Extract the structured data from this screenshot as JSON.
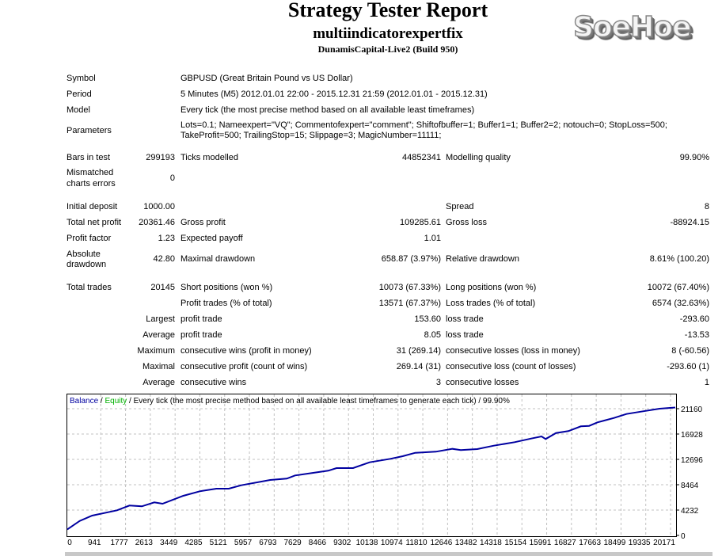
{
  "header": {
    "title": "Strategy Tester Report",
    "expert": "multiindicatorexpertfix",
    "server": "DunamisCapital-Live2 (Build 950)",
    "logo": "SoeHoe"
  },
  "info": {
    "symbol_label": "Symbol",
    "symbol": "GBPUSD (Great Britain Pound vs US Dollar)",
    "period_label": "Period",
    "period": "5 Minutes (M5) 2012.01.01 22:00 - 2015.12.31 21:59 (2012.01.01 - 2015.12.31)",
    "model_label": "Model",
    "model": "Every tick (the most precise method based on all available least timeframes)",
    "parameters_label": "Parameters",
    "parameters_line1": "Lots=0.1; Nameexpert=\"VQ\"; Commentofexpert=\"comment\"; Shiftofbuffer=1; Buffer1=1; Buffer2=2; notouch=0; StopLoss=500;",
    "parameters_line2": "TakeProfit=500; TrailingStop=15; Slippage=3; MagicNumber=11111;"
  },
  "stats": {
    "bars_label": "Bars in test",
    "bars": "299193",
    "ticks_label": "Ticks modelled",
    "ticks": "44852341",
    "quality_label": "Modelling quality",
    "quality": "99.90%",
    "mismatch_label1": "Mismatched",
    "mismatch_label2": "charts errors",
    "mismatch": "0",
    "deposit_label": "Initial deposit",
    "deposit": "1000.00",
    "spread_label": "Spread",
    "spread": "8",
    "net_label": "Total net profit",
    "net": "20361.46",
    "gross_profit_label": "Gross profit",
    "gross_profit": "109285.61",
    "gross_loss_label": "Gross loss",
    "gross_loss": "-88924.15",
    "pf_label": "Profit factor",
    "pf": "1.23",
    "payoff_label": "Expected payoff",
    "payoff": "1.01",
    "abs_dd_label1": "Absolute",
    "abs_dd_label2": "drawdown",
    "abs_dd": "42.80",
    "max_dd_label": "Maximal drawdown",
    "max_dd": "658.87 (3.97%)",
    "rel_dd_label": "Relative drawdown",
    "rel_dd": "8.61% (100.20)",
    "trades_label": "Total trades",
    "trades": "20145",
    "short_label": "Short positions (won %)",
    "short": "10073 (67.33%)",
    "long_label": "Long positions (won %)",
    "long": "10072 (67.40%)",
    "profit_trades_label": "Profit trades (% of total)",
    "profit_trades": "13571 (67.37%)",
    "loss_trades_label": "Loss trades (% of total)",
    "loss_trades": "6574 (32.63%)",
    "largest_label": "Largest",
    "largest_profit_label": "profit trade",
    "largest_profit": "153.60",
    "largest_loss_label": "loss trade",
    "largest_loss": "-293.60",
    "average_label": "Average",
    "average_profit_label": "profit trade",
    "average_profit": "8.05",
    "average_loss_label": "loss trade",
    "average_loss": "-13.53",
    "maximum_label": "Maximum",
    "max_wins_label": "consecutive wins (profit in money)",
    "max_wins": "31 (269.14)",
    "max_losses_label": "consecutive losses (loss in money)",
    "max_losses": "8 (-60.56)",
    "maximal_label": "Maximal",
    "maximal_profit_label": "consecutive profit (count of wins)",
    "maximal_profit": "269.14 (31)",
    "maximal_loss_label": "consecutive loss (count of losses)",
    "maximal_loss": "-293.60 (1)",
    "avg_cons_label": "Average",
    "avg_cons_wins_label": "consecutive wins",
    "avg_cons_wins": "3",
    "avg_cons_losses_label": "consecutive losses",
    "avg_cons_losses": "1"
  },
  "chart_data": {
    "type": "line",
    "legend": {
      "balance": "Balance",
      "sep1": " / ",
      "equity": "Equity",
      "rest": " / Every tick (the most precise method based on all available least timeframes to generate each tick) / 99.90%"
    },
    "colors": {
      "balance": "#0000a0",
      "equity": "#00b000",
      "grid": "#c0c0c0"
    },
    "grid": true,
    "x_ticks": [
      "0",
      "941",
      "1777",
      "2613",
      "3449",
      "4285",
      "5121",
      "5957",
      "6793",
      "7629",
      "8466",
      "9302",
      "10138",
      "10974",
      "11810",
      "12646",
      "13482",
      "14318",
      "15154",
      "15991",
      "16827",
      "17663",
      "18499",
      "19335",
      "20171"
    ],
    "y_ticks": [
      "0",
      "4232",
      "8464",
      "12696",
      "16928",
      "21160"
    ],
    "ylim": [
      0,
      21160
    ],
    "xlim": [
      0,
      20145
    ],
    "series": [
      {
        "name": "Balance",
        "x": [
          0,
          412,
          823,
          1647,
          2058,
          2470,
          2882,
          3156,
          3842,
          4391,
          4940,
          5352,
          5763,
          6724,
          7273,
          7547,
          8645,
          8920,
          9469,
          10018,
          10704,
          11115,
          11527,
          12213,
          12762,
          13036,
          13585,
          14134,
          14821,
          15370,
          15713,
          15850,
          16193,
          16605,
          17016,
          17291,
          17565,
          18114,
          18526,
          19075,
          19624,
          20145
        ],
        "y": [
          1000,
          2424,
          3306,
          4188,
          4981,
          4849,
          5510,
          5290,
          6612,
          7361,
          7802,
          7802,
          8375,
          9257,
          9477,
          10006,
          10800,
          11240,
          11240,
          12210,
          12783,
          13224,
          13797,
          13974,
          14458,
          14238,
          14414,
          14987,
          15560,
          16177,
          16530,
          16089,
          17103,
          17412,
          18205,
          18293,
          18866,
          19616,
          20277,
          20718,
          21159,
          21361
        ]
      }
    ]
  }
}
